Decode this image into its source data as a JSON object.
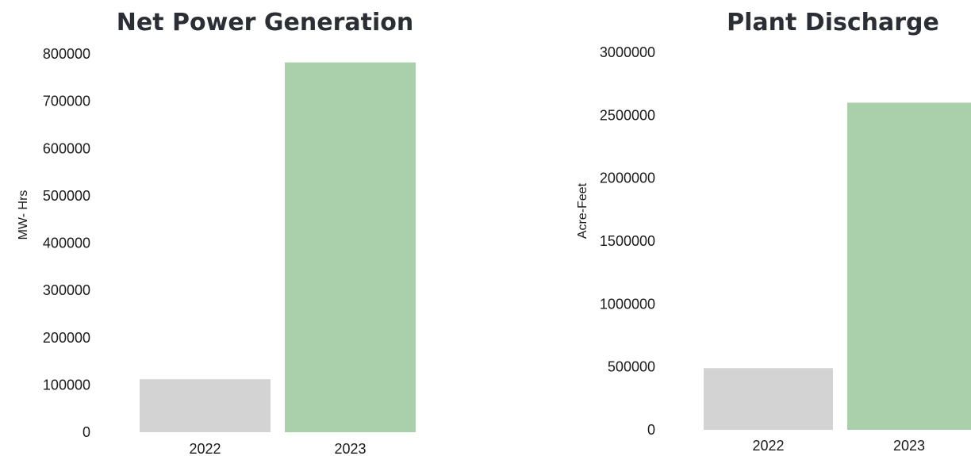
{
  "chart_data": [
    {
      "type": "bar",
      "title": "Net Power Generation",
      "xlabel": "",
      "ylabel": "MW- Hrs",
      "categories": [
        "2022",
        "2023"
      ],
      "values": [
        112000,
        782000
      ],
      "colors": [
        "#d3d3d3",
        "#aacfab"
      ],
      "ylim": [
        0,
        800000
      ],
      "yticks": [
        "0",
        "100000",
        "200000",
        "300000",
        "400000",
        "500000",
        "600000",
        "700000",
        "800000"
      ],
      "grid": false,
      "legend": "none"
    },
    {
      "type": "bar",
      "title": "Plant Discharge",
      "xlabel": "",
      "ylabel": "Acre-Feet",
      "categories": [
        "2022",
        "2023"
      ],
      "values": [
        490000,
        2600000
      ],
      "colors": [
        "#d3d3d3",
        "#aacfab"
      ],
      "ylim": [
        0,
        3000000
      ],
      "yticks": [
        "0",
        "500000",
        "1000000",
        "1500000",
        "2000000",
        "2500000",
        "3000000"
      ],
      "grid": false,
      "legend": "none"
    }
  ]
}
